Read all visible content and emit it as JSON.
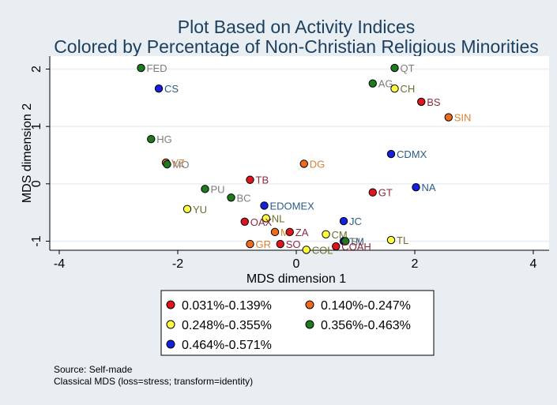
{
  "chart_data": {
    "type": "scatter",
    "title": [
      "Plot Based on Activity Indices",
      "Colored by Percentage of Non-Christian Religious Minorities"
    ],
    "xlabel": "MDS dimension 1",
    "ylabel": "MDS dimension 2",
    "xlim": [
      -4,
      4
    ],
    "ylim": [
      -1.4,
      2.3
    ],
    "xticks": [
      -4,
      -2,
      0,
      2,
      4
    ],
    "yticks": [
      -1,
      0,
      1,
      2
    ],
    "grid": "horizontal",
    "legend_position": "bottom",
    "groups": [
      {
        "name": "0.031%-0.139%",
        "color": "#e0141c",
        "label_color": "#8b2a3f"
      },
      {
        "name": "0.140%-0.247%",
        "color": "#f06a1c",
        "label_color": "#d98230"
      },
      {
        "name": "0.248%-0.355%",
        "color": "#ffff40",
        "label_color": "#6e6e2a"
      },
      {
        "name": "0.356%-0.463%",
        "color": "#1e7a1e",
        "label_color": "#7d7d7d"
      },
      {
        "name": "0.464%-0.571%",
        "color": "#1420e0",
        "label_color": "#2b5b83"
      }
    ],
    "points": [
      {
        "label": "FED",
        "x": -2.62,
        "y": 2.02,
        "group": 3
      },
      {
        "label": "CS",
        "x": -2.32,
        "y": 1.66,
        "group": 4
      },
      {
        "label": "QT",
        "x": 1.66,
        "y": 2.02,
        "group": 3
      },
      {
        "label": "AG",
        "x": 1.29,
        "y": 1.75,
        "group": 3
      },
      {
        "label": "CH",
        "x": 1.66,
        "y": 1.66,
        "group": 2
      },
      {
        "label": "BS",
        "x": 2.11,
        "y": 1.43,
        "group": 0
      },
      {
        "label": "SIN",
        "x": 2.57,
        "y": 1.16,
        "group": 1
      },
      {
        "label": "HG",
        "x": -2.45,
        "y": 0.78,
        "group": 3
      },
      {
        "label": "CDMX",
        "x": 1.6,
        "y": 0.52,
        "group": 4
      },
      {
        "label": "VZ",
        "x": -2.2,
        "y": 0.37,
        "group": 1
      },
      {
        "label": "MO",
        "x": -2.18,
        "y": 0.34,
        "group": 3
      },
      {
        "label": "DG",
        "x": 0.13,
        "y": 0.35,
        "group": 1
      },
      {
        "label": "TB",
        "x": -0.78,
        "y": 0.07,
        "group": 0
      },
      {
        "label": "NA",
        "x": 2.02,
        "y": -0.06,
        "group": 4
      },
      {
        "label": "PU",
        "x": -1.54,
        "y": -0.09,
        "group": 3
      },
      {
        "label": "GT",
        "x": 1.29,
        "y": -0.15,
        "group": 0
      },
      {
        "label": "BC",
        "x": -1.1,
        "y": -0.24,
        "group": 3
      },
      {
        "label": "EDOMEX",
        "x": -0.54,
        "y": -0.38,
        "group": 4
      },
      {
        "label": "YU",
        "x": -1.84,
        "y": -0.44,
        "group": 2
      },
      {
        "label": "NL",
        "x": -0.51,
        "y": -0.6,
        "group": 2
      },
      {
        "label": "OAX",
        "x": -0.87,
        "y": -0.66,
        "group": 0
      },
      {
        "label": "JC",
        "x": 0.8,
        "y": -0.65,
        "group": 4
      },
      {
        "label": "MI",
        "x": -0.36,
        "y": -0.84,
        "group": 1
      },
      {
        "label": "ZA",
        "x": -0.11,
        "y": -0.84,
        "group": 0
      },
      {
        "label": "CM",
        "x": 0.5,
        "y": -0.88,
        "group": 2
      },
      {
        "label": "TL",
        "x": 1.6,
        "y": -0.98,
        "group": 2
      },
      {
        "label": "TM",
        "x": 0.8,
        "y": -1.0,
        "group": 4
      },
      {
        "label": "SL",
        "x": 0.83,
        "y": -1.0,
        "group": 3
      },
      {
        "label": "GR",
        "x": -0.78,
        "y": -1.05,
        "group": 1
      },
      {
        "label": "SO",
        "x": -0.27,
        "y": -1.05,
        "group": 0
      },
      {
        "label": "COAH",
        "x": 0.67,
        "y": -1.09,
        "group": 0
      },
      {
        "label": "COL",
        "x": 0.17,
        "y": -1.15,
        "group": 2
      }
    ]
  },
  "notes": [
    "Source: Self-made",
    "Classical MDS (loss=stress; transform=identity)"
  ]
}
